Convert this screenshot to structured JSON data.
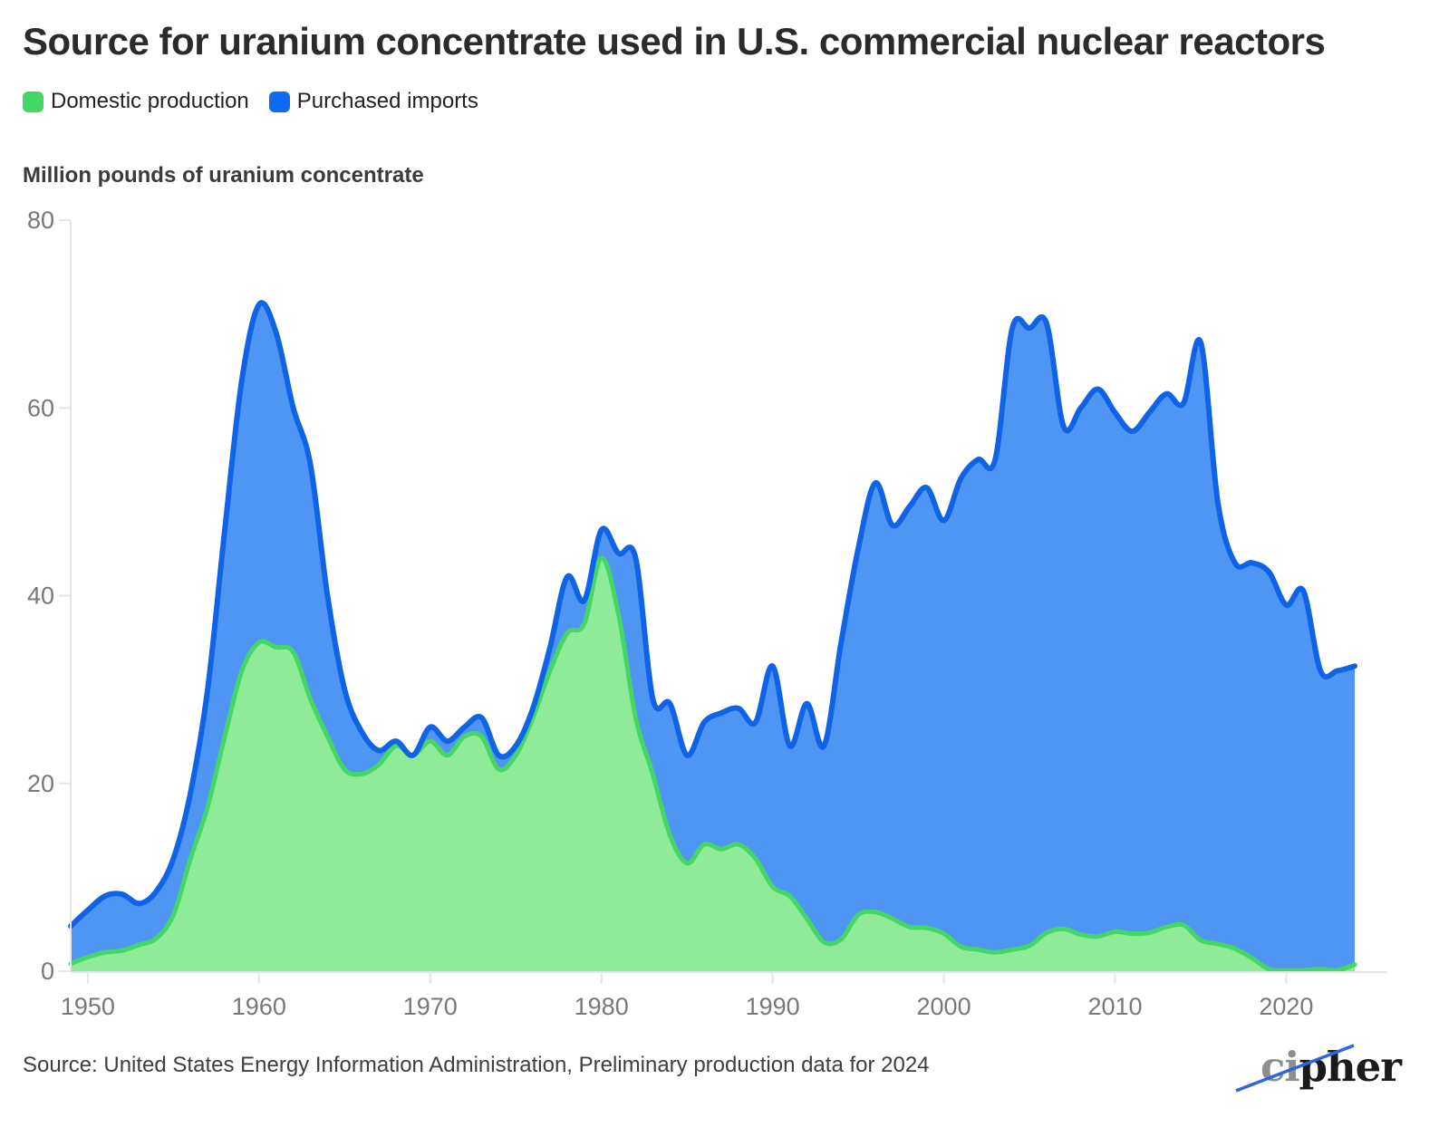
{
  "title": "Source for uranium concentrate used in U.S. commercial nuclear reactors",
  "legend": [
    {
      "label": "Domestic production",
      "color": "#45d764"
    },
    {
      "label": "Purchased imports",
      "color": "#0c6bf2"
    }
  ],
  "axis_title": "Million pounds of uranium concentrate",
  "source_note": "Source: United States Energy Information Administration, Preliminary production data for 2024",
  "logo": {
    "part1": "ci",
    "part2": "pher",
    "slash_color": "#2e68d8"
  },
  "chart_data": {
    "type": "area",
    "stacked": true,
    "title": "Source for uranium concentrate used in U.S. commercial nuclear reactors",
    "ylabel": "Million pounds of uranium concentrate",
    "xlim": [
      1949,
      2024
    ],
    "ylim": [
      0,
      80
    ],
    "grid": false,
    "legend_position": "top-left",
    "axis_color": "#e5e5e8",
    "tick_label_color": "#78787c",
    "xticks": [
      1950,
      1960,
      1970,
      1980,
      1990,
      2000,
      2010,
      2020
    ],
    "yticks": [
      0,
      20,
      40,
      60,
      80
    ],
    "x": [
      1949,
      1950,
      1951,
      1952,
      1953,
      1954,
      1955,
      1956,
      1957,
      1958,
      1959,
      1960,
      1961,
      1962,
      1963,
      1964,
      1965,
      1966,
      1967,
      1968,
      1969,
      1970,
      1971,
      1972,
      1973,
      1974,
      1975,
      1976,
      1977,
      1978,
      1979,
      1980,
      1981,
      1982,
      1983,
      1984,
      1985,
      1986,
      1987,
      1988,
      1989,
      1990,
      1991,
      1992,
      1993,
      1994,
      1995,
      1996,
      1997,
      1998,
      1999,
      2000,
      2001,
      2002,
      2003,
      2004,
      2005,
      2006,
      2007,
      2008,
      2009,
      2010,
      2011,
      2012,
      2013,
      2014,
      2015,
      2016,
      2017,
      2018,
      2019,
      2020,
      2021,
      2022,
      2023,
      2024
    ],
    "series": [
      {
        "name": "Domestic production",
        "fill": "#8feb97",
        "stroke": "#45d764",
        "stroke_width": 5,
        "values": [
          0.8,
          1.5,
          2.0,
          2.2,
          2.8,
          3.5,
          6.0,
          12.0,
          17.5,
          25.0,
          32.0,
          35.0,
          34.5,
          34.0,
          29.0,
          25.0,
          21.5,
          21.0,
          22.0,
          24.0,
          23.0,
          24.5,
          23.0,
          25.0,
          25.0,
          21.5,
          23.0,
          27.0,
          32.0,
          36.0,
          37.0,
          44.0,
          38.0,
          27.0,
          21.0,
          14.5,
          11.5,
          13.5,
          13.0,
          13.5,
          12.0,
          9.0,
          8.0,
          5.6,
          3.1,
          3.4,
          6.0,
          6.3,
          5.6,
          4.7,
          4.6,
          4.0,
          2.6,
          2.3,
          2.0,
          2.3,
          2.7,
          4.1,
          4.5,
          3.9,
          3.7,
          4.2,
          4.0,
          4.1,
          4.7,
          4.9,
          3.3,
          2.9,
          2.4,
          1.4,
          0.2,
          0.1,
          0.1,
          0.2,
          0.1,
          0.7
        ]
      },
      {
        "name": "Purchased imports",
        "fill": "#4f96f4",
        "stroke": "#0f63e6",
        "stroke_width": 6,
        "values": [
          4.0,
          5.0,
          6.0,
          6.0,
          4.4,
          5.0,
          6.0,
          7.0,
          12.5,
          22.0,
          31.0,
          36.0,
          33.5,
          26.0,
          25.0,
          15.0,
          8.5,
          4.5,
          1.5,
          0.5,
          0.0,
          1.5,
          1.5,
          1.0,
          2.0,
          1.5,
          1.0,
          1.0,
          2.5,
          6.0,
          2.5,
          3.0,
          6.5,
          17.0,
          8.0,
          14.0,
          11.5,
          13.0,
          14.5,
          14.5,
          14.5,
          23.5,
          16.0,
          22.9,
          20.9,
          31.6,
          39.0,
          45.7,
          41.9,
          44.8,
          46.9,
          44.0,
          49.9,
          52.2,
          52.5,
          66.2,
          65.8,
          64.9,
          53.5,
          56.1,
          58.3,
          55.3,
          53.5,
          55.4,
          56.8,
          55.6,
          63.7,
          47.1,
          41.1,
          42.1,
          42.3,
          38.9,
          40.4,
          31.8,
          31.9,
          31.8
        ]
      }
    ]
  }
}
